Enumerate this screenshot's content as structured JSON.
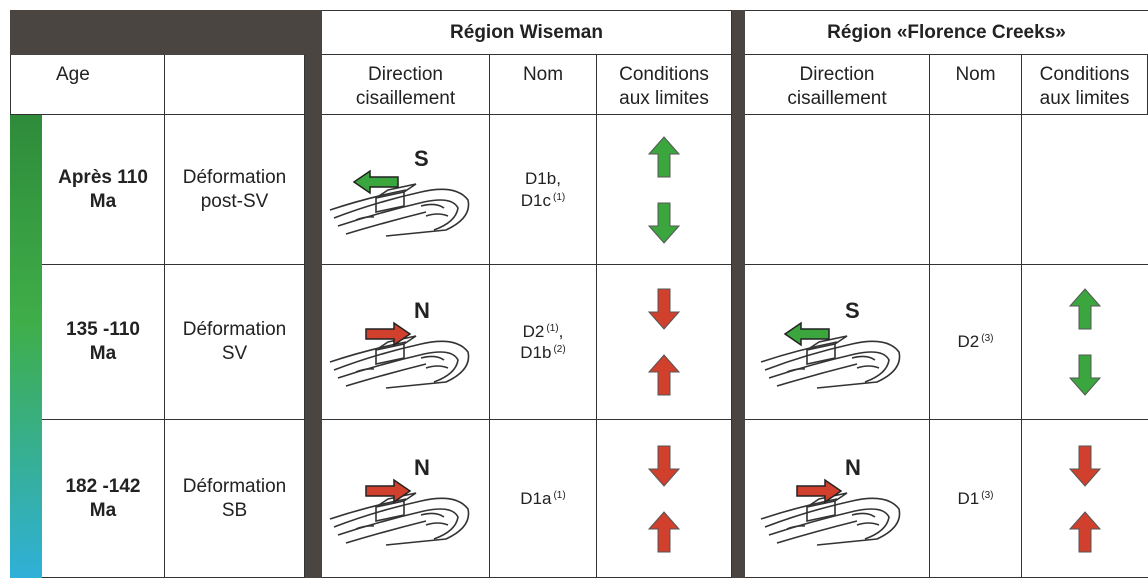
{
  "header": {
    "regions": [
      "Région Wiseman",
      "Région «Florence Creeks»"
    ],
    "age": "Age",
    "direction": [
      "Direction",
      "cisaillement"
    ],
    "nom": "Nom",
    "conditions": [
      "Conditions",
      "aux limites"
    ]
  },
  "rows": [
    {
      "age": [
        "Après 110",
        "Ma"
      ],
      "deformation": [
        "Déformation",
        "post-SV"
      ],
      "wiseman": {
        "shear": "S",
        "nom": [
          {
            "text": "D1b,"
          },
          {
            "text": "D1c",
            "note": "(1)"
          }
        ]
      }
    },
    {
      "age": [
        "135 -110",
        "Ma"
      ],
      "deformation": [
        "Déformation",
        "SV"
      ],
      "wiseman": {
        "shear": "N",
        "nom": [
          {
            "text": "D2",
            "note": "(1)",
            "after": ","
          },
          {
            "text": "D1b",
            "note": "(2)"
          }
        ]
      },
      "florence": {
        "shear": "S",
        "nom": [
          {
            "text": "D2",
            "note": "(3)"
          }
        ]
      }
    },
    {
      "age": [
        "182 -142",
        "Ma"
      ],
      "deformation": [
        "Déformation",
        "SB"
      ],
      "wiseman": {
        "shear": "N",
        "nom": [
          {
            "text": "D1a",
            "note": "(1)"
          }
        ]
      },
      "florence": {
        "shear": "N",
        "nom": [
          {
            "text": "D1",
            "note": "(3)"
          }
        ]
      }
    }
  ]
}
